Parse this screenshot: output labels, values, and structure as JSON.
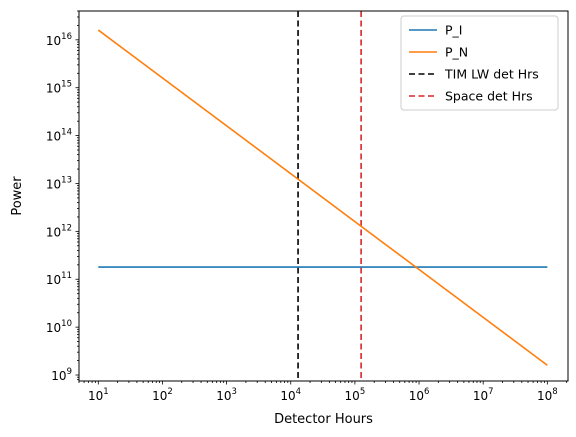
{
  "chart_data": {
    "type": "line",
    "xscale": "log",
    "yscale": "log",
    "xlim": [
      5,
      210000000
    ],
    "ylim": [
      750000000,
      40000000000000000
    ],
    "xlabel": "Detector Hours",
    "ylabel": "Power",
    "x_tick_exponents": [
      1,
      2,
      3,
      4,
      5,
      6,
      7,
      8
    ],
    "y_tick_exponents": [
      9,
      10,
      11,
      12,
      13,
      14,
      15,
      16
    ],
    "tick_base": "10",
    "grid": false,
    "legend_position": "top-right",
    "series": [
      {
        "name": "P_I",
        "color": "#1f77b4",
        "style": "solid",
        "x": [
          10,
          100000000
        ],
        "y": [
          180000000000,
          180000000000
        ]
      },
      {
        "name": "P_N",
        "color": "#ff7f0e",
        "style": "solid",
        "x": [
          10,
          100000000
        ],
        "y": [
          16000000000000000,
          1600000000
        ]
      }
    ],
    "vlines": [
      {
        "name": "TIM LW det Hrs",
        "color": "#000000",
        "style": "dashed",
        "x": 13000
      },
      {
        "name": "Space det Hrs",
        "color": "#d62728",
        "style": "dashed",
        "x": 125000
      }
    ]
  }
}
